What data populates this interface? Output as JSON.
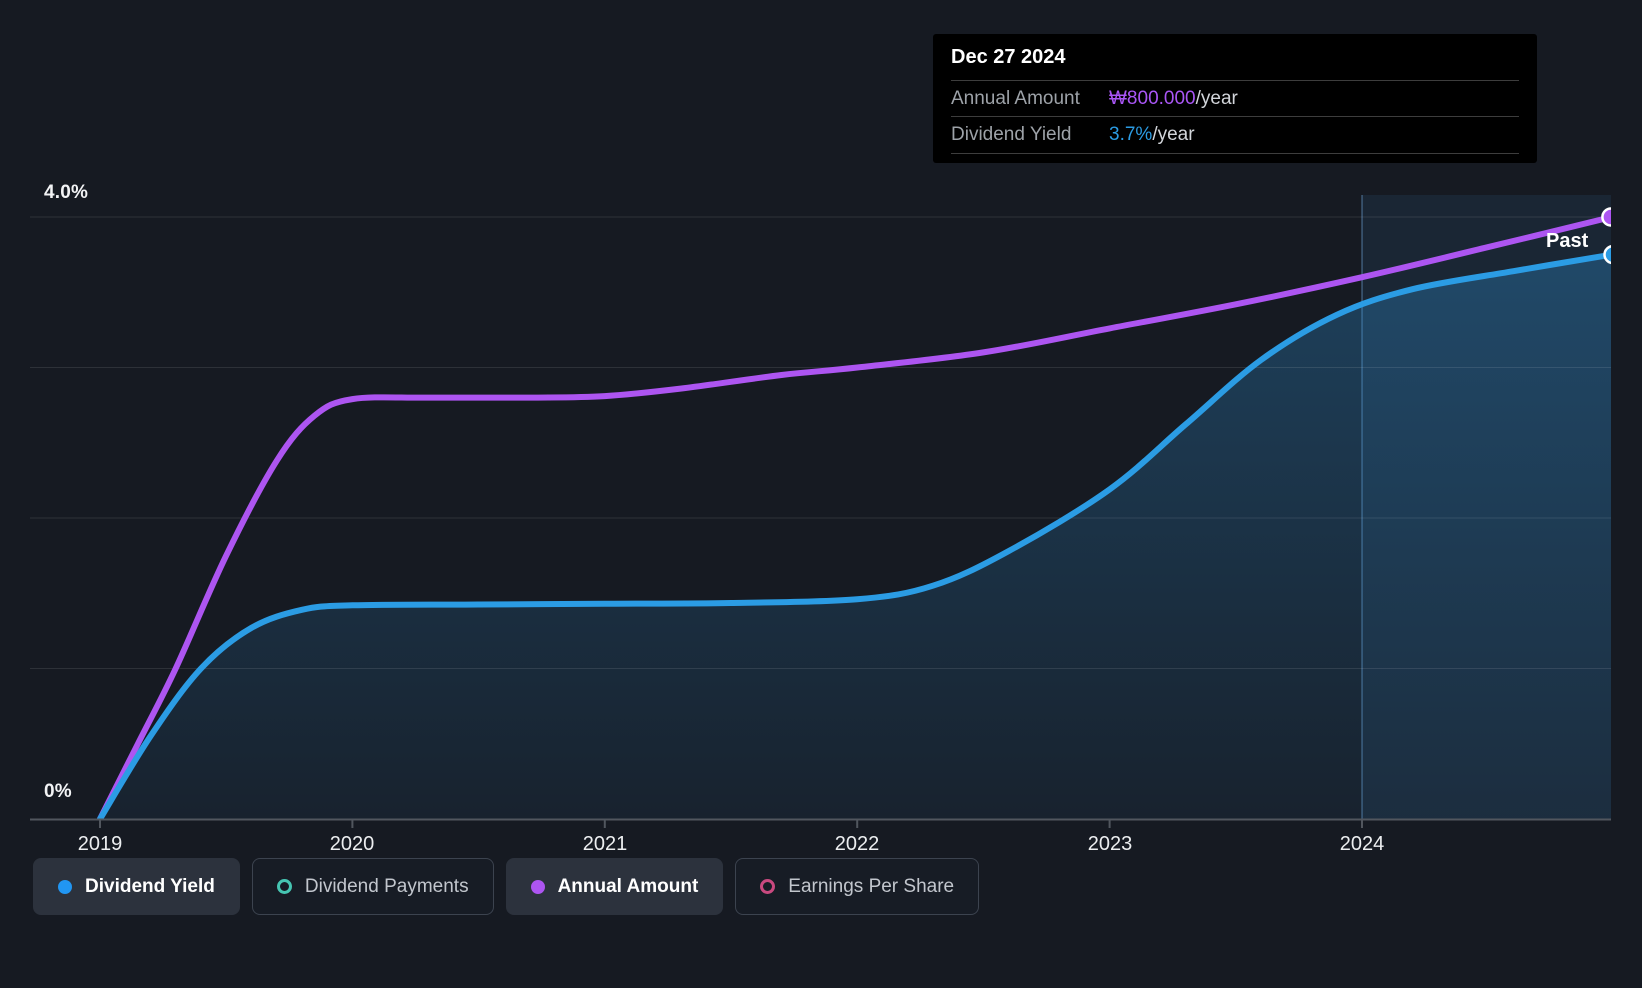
{
  "tooltip": {
    "date": "Dec 27 2024",
    "rows": [
      {
        "label": "Annual Amount",
        "value": "₩800.000",
        "suffix": "/year",
        "value_color": "#a956f5"
      },
      {
        "label": "Dividend Yield",
        "value": "3.7%",
        "suffix": "/year",
        "value_color": "#2b9ce4"
      }
    ]
  },
  "axes": {
    "y_top_label": "4.0%",
    "y_bottom_label": "0%",
    "x_labels": [
      "2019",
      "2020",
      "2021",
      "2022",
      "2023",
      "2024"
    ]
  },
  "annotations": {
    "past_label": "Past"
  },
  "legend": [
    {
      "label": "Dividend Yield",
      "color": "#2196f3",
      "marker": "filled",
      "active": true
    },
    {
      "label": "Dividend Payments",
      "color": "#46c5b2",
      "marker": "outline",
      "active": false
    },
    {
      "label": "Annual Amount",
      "color": "#ad55f1",
      "marker": "filled",
      "active": true
    },
    {
      "label": "Earnings Per Share",
      "color": "#c9497f",
      "marker": "outline",
      "active": false
    }
  ],
  "chart_data": {
    "type": "line",
    "title": "Dividend history",
    "x_range_years": [
      2019,
      2024.99
    ],
    "y_axis": {
      "min_pct": 0,
      "max_pct": 4.0,
      "gridline_step_pct": 1.0,
      "grid": true
    },
    "past_divider_year": 2024,
    "latest_point": {
      "date": "Dec 27 2024",
      "annual_amount": "₩800.000/year",
      "dividend_yield_pct": 3.7
    },
    "series": [
      {
        "name": "Dividend Yield",
        "color": "#2b9ce4",
        "unit": "%",
        "area_fill": true,
        "points": [
          [
            2019.0,
            0.0
          ],
          [
            2019.2,
            0.55
          ],
          [
            2019.4,
            1.0
          ],
          [
            2019.6,
            1.27
          ],
          [
            2019.8,
            1.39
          ],
          [
            2020.0,
            1.42
          ],
          [
            2020.5,
            1.425
          ],
          [
            2021.0,
            1.43
          ],
          [
            2021.5,
            1.435
          ],
          [
            2022.0,
            1.46
          ],
          [
            2022.3,
            1.55
          ],
          [
            2022.6,
            1.78
          ],
          [
            2023.0,
            2.19
          ],
          [
            2023.3,
            2.62
          ],
          [
            2023.6,
            3.05
          ],
          [
            2023.9,
            3.35
          ],
          [
            2024.2,
            3.52
          ],
          [
            2024.6,
            3.64
          ],
          [
            2024.99,
            3.75
          ]
        ]
      },
      {
        "name": "Annual Amount",
        "color": "#ad55f1",
        "unit": "pct-of-axis (final value ₩800.000/year)",
        "area_fill": false,
        "points": [
          [
            2019.0,
            0.0
          ],
          [
            2019.15,
            0.5
          ],
          [
            2019.3,
            1.0
          ],
          [
            2019.5,
            1.75
          ],
          [
            2019.7,
            2.38
          ],
          [
            2019.85,
            2.68
          ],
          [
            2020.0,
            2.79
          ],
          [
            2020.3,
            2.8
          ],
          [
            2020.7,
            2.8
          ],
          [
            2021.0,
            2.81
          ],
          [
            2021.3,
            2.86
          ],
          [
            2021.7,
            2.95
          ],
          [
            2022.0,
            3.0
          ],
          [
            2022.5,
            3.1
          ],
          [
            2023.0,
            3.26
          ],
          [
            2023.5,
            3.42
          ],
          [
            2024.0,
            3.6
          ],
          [
            2024.5,
            3.8
          ],
          [
            2024.99,
            4.0
          ]
        ]
      },
      {
        "name": "Dividend Payments",
        "color": "#46c5b2",
        "points": []
      },
      {
        "name": "Earnings Per Share",
        "color": "#c9497f",
        "points": []
      }
    ],
    "legend_position": "bottom"
  }
}
